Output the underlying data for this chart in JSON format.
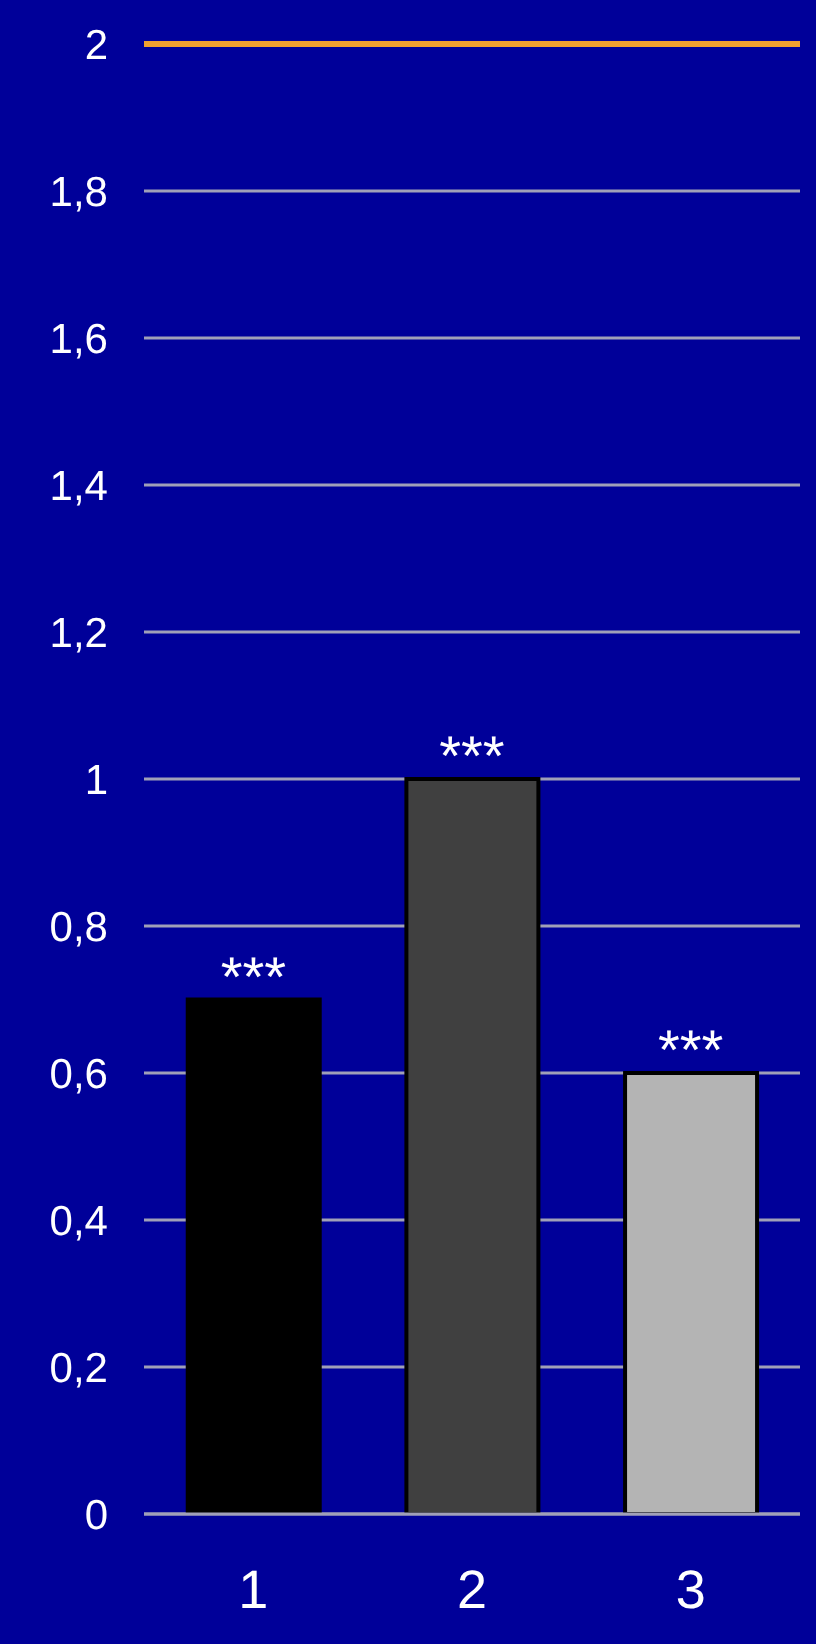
{
  "chart_data": {
    "type": "bar",
    "categories": [
      "1",
      "2",
      "3"
    ],
    "values": [
      0.7,
      1.0,
      0.6
    ],
    "colors": [
      "#000000",
      "#404040",
      "#b4b4b4"
    ],
    "ylim": [
      0,
      2
    ],
    "yticks": [
      0,
      {
        "value": 0.2,
        "label": "0,2"
      },
      {
        "value": 0.4,
        "label": "0,4"
      },
      {
        "value": 0.6,
        "label": "0,6"
      },
      {
        "value": 0.8,
        "label": "0,8"
      },
      1,
      {
        "value": 1.2,
        "label": "1,2"
      },
      {
        "value": 1.4,
        "label": "1,4"
      },
      {
        "value": 1.6,
        "label": "1,6"
      },
      {
        "value": 1.8,
        "label": "1,8"
      },
      2
    ],
    "grid": "y",
    "ref_lines": [
      {
        "axis": "y",
        "value": 2,
        "color": "#f0a030"
      }
    ],
    "annotations": [
      {
        "text": "***",
        "x": "1",
        "y": 0.7
      },
      {
        "text": "***",
        "x": "2",
        "y": 1.0
      },
      {
        "text": "***",
        "x": "3",
        "y": 0.6
      }
    ]
  }
}
